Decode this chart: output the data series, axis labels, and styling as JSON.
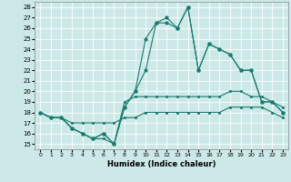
{
  "xlabel": "Humidex (Indice chaleur)",
  "bg_color": "#cce9e8",
  "grid_color": "#ffffff",
  "line_color": "#1a7a6e",
  "xlim": [
    -0.5,
    23.5
  ],
  "ylim": [
    14.5,
    28.5
  ],
  "xticks": [
    0,
    1,
    2,
    3,
    4,
    5,
    6,
    7,
    8,
    9,
    10,
    11,
    12,
    13,
    14,
    15,
    16,
    17,
    18,
    19,
    20,
    21,
    22,
    23
  ],
  "yticks": [
    15,
    16,
    17,
    18,
    19,
    20,
    21,
    22,
    23,
    24,
    25,
    26,
    27,
    28
  ],
  "line1_x": [
    0,
    1,
    2,
    3,
    4,
    5,
    6,
    7,
    8,
    9,
    10,
    11,
    12,
    13,
    14,
    15,
    16,
    17,
    18,
    19,
    20,
    21,
    22,
    23
  ],
  "line1_y": [
    18,
    17.5,
    17.5,
    17,
    17,
    17,
    17,
    17,
    17.5,
    17.5,
    18,
    18,
    18,
    18,
    18,
    18,
    18,
    18,
    18.5,
    18.5,
    18.5,
    18.5,
    18,
    17.5
  ],
  "line2_x": [
    0,
    1,
    2,
    3,
    4,
    5,
    6,
    7,
    8,
    9,
    10,
    11,
    12,
    13,
    14,
    15,
    16,
    17,
    18,
    19,
    20,
    21,
    22,
    23
  ],
  "line2_y": [
    18,
    17.5,
    17.5,
    16.5,
    16,
    15.5,
    15.5,
    15,
    19,
    19.5,
    19.5,
    19.5,
    19.5,
    19.5,
    19.5,
    19.5,
    19.5,
    19.5,
    20,
    20,
    19.5,
    19.5,
    19,
    18.5
  ],
  "line3_x": [
    0,
    1,
    2,
    3,
    4,
    5,
    6,
    7,
    8,
    9,
    10,
    11,
    12,
    13,
    14,
    15,
    16,
    17,
    18,
    19,
    20,
    21,
    22,
    23
  ],
  "line3_y": [
    18,
    17.5,
    17.5,
    16.5,
    16,
    15.5,
    16,
    15,
    18.5,
    20,
    22,
    26.5,
    26.5,
    26,
    28,
    22,
    24.5,
    24,
    23.5,
    22,
    22,
    19,
    19,
    18
  ],
  "line4_x": [
    0,
    1,
    2,
    3,
    4,
    5,
    6,
    7,
    8,
    9,
    10,
    11,
    12,
    13,
    14,
    15,
    16,
    17,
    18,
    19,
    20,
    21,
    22,
    23
  ],
  "line4_y": [
    18,
    17.5,
    17.5,
    16.5,
    16,
    15.5,
    16,
    15,
    18.5,
    20,
    25,
    26.5,
    27,
    26,
    28,
    22,
    24.5,
    24,
    23.5,
    22,
    22,
    19,
    19,
    18
  ]
}
